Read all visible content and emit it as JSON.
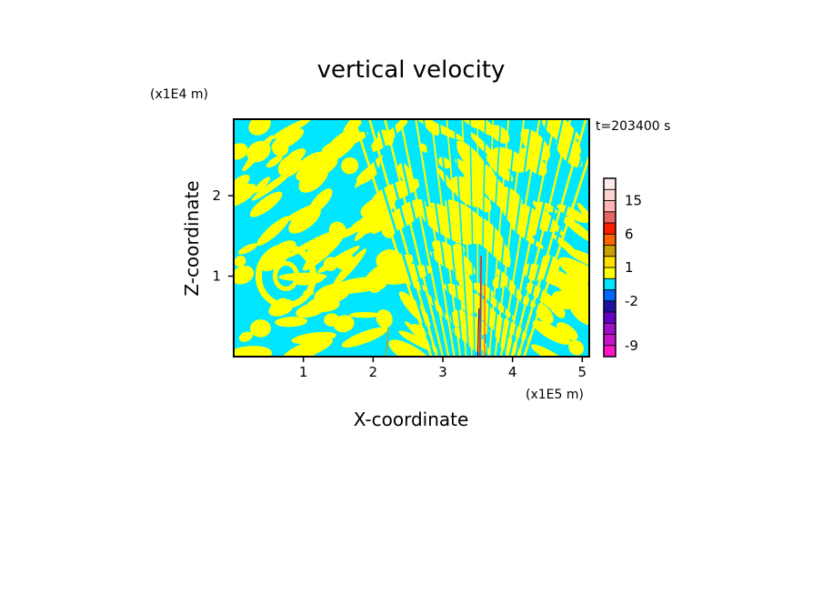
{
  "chart_data": {
    "type": "heatmap",
    "title": "vertical velocity",
    "xlabel": "X-coordinate",
    "ylabel": "Z-coordinate",
    "x_unit": "(x1E5 m)",
    "y_unit": "(x1E4 m)",
    "time_label": "t=203400 s",
    "xlim": [
      0,
      5.1
    ],
    "ylim": [
      0,
      2.95
    ],
    "x_ticks": [
      1,
      2,
      3,
      4,
      5
    ],
    "y_ticks": [
      1,
      2
    ],
    "grid": false,
    "legend": "right colorbar",
    "colorbar": {
      "levels": [
        -12,
        -9,
        -6,
        -4,
        -3,
        -2,
        -1,
        0,
        1,
        2,
        3,
        6,
        9,
        12,
        15,
        18,
        24
      ],
      "colors": [
        "#ff14c8",
        "#c814c8",
        "#a010c8",
        "#6400c8",
        "#1e10a0",
        "#0064ff",
        "#00e6ff",
        "#ffff00",
        "#ffe000",
        "#c8a000",
        "#ff6400",
        "#ff1e00",
        "#e66464",
        "#ffb4b4",
        "#ffd2d2",
        "#ffeaea"
      ],
      "tick_labels": [
        "15",
        "6",
        "1",
        "-2",
        "-9"
      ],
      "tick_values": [
        15,
        6,
        1,
        -2,
        -9
      ]
    },
    "field_summary": "Alternating positive (yellow, 0 to 1) and negative (cyan, -1 to 0) vertical velocity bands; tilted wave pattern, fan of narrow vertical stripes near x=3.5; thin red/blue streaks near x=3.55"
  }
}
